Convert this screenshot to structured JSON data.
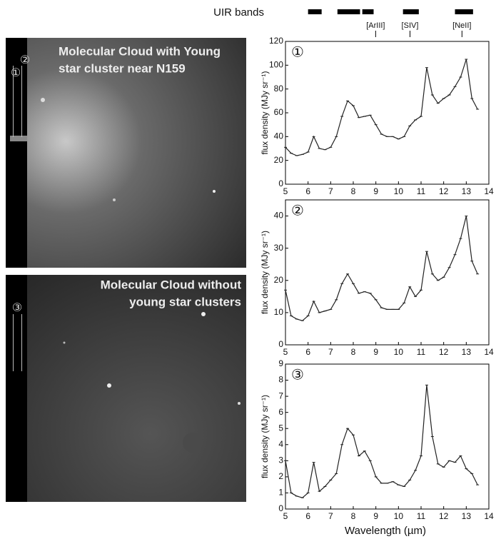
{
  "uir": {
    "label": "UIR bands",
    "bands": [
      [
        6.0,
        6.6
      ],
      [
        7.3,
        8.3
      ],
      [
        8.4,
        8.9
      ],
      [
        10.2,
        10.9
      ],
      [
        12.5,
        13.3
      ]
    ],
    "lines": [
      {
        "label": "[ArIII]",
        "x": 8.99
      },
      {
        "label": "[SIV]",
        "x": 10.51
      },
      {
        "label": "[NeII]",
        "x": 12.81
      }
    ]
  },
  "images": [
    {
      "caption_lines": [
        "Molecular Cloud with Young",
        "star cluster near N159"
      ],
      "markers": [
        "①",
        "②"
      ]
    },
    {
      "caption_lines": [
        "Molecular Cloud without",
        "young star clusters"
      ],
      "markers": [
        "③"
      ]
    }
  ],
  "x_label": "Wavelength (µm)",
  "chart_data": [
    {
      "type": "line",
      "panel_label": "①",
      "y_label": "flux density (MJy sr⁻¹)",
      "xlim": [
        5,
        14
      ],
      "xticks": [
        5,
        6,
        7,
        8,
        9,
        10,
        11,
        12,
        13,
        14
      ],
      "ylim": [
        0,
        120
      ],
      "yticks": [
        0,
        20,
        40,
        60,
        80,
        100,
        120
      ],
      "x": [
        5,
        5.25,
        5.5,
        5.75,
        6,
        6.25,
        6.5,
        6.75,
        7,
        7.25,
        7.5,
        7.75,
        8,
        8.25,
        8.5,
        8.75,
        9,
        9.25,
        9.5,
        9.75,
        10,
        10.25,
        10.5,
        10.75,
        11,
        11.25,
        11.5,
        11.75,
        12,
        12.25,
        12.5,
        12.75,
        13,
        13.25,
        13.5
      ],
      "series": [
        {
          "color": "#222222",
          "values": [
            31,
            26,
            24,
            25,
            27,
            40,
            30,
            29,
            31,
            40,
            57,
            70,
            66,
            56,
            57,
            58,
            50,
            42,
            40,
            40,
            38,
            40,
            49,
            54,
            57,
            98,
            75,
            68,
            72,
            75,
            82,
            90,
            105,
            72,
            63
          ]
        }
      ]
    },
    {
      "type": "line",
      "panel_label": "②",
      "y_label": "flux density (MJy sr⁻¹)",
      "xlim": [
        5,
        14
      ],
      "xticks": [
        5,
        6,
        7,
        8,
        9,
        10,
        11,
        12,
        13,
        14
      ],
      "ylim": [
        0,
        45
      ],
      "yticks": [
        0,
        10,
        20,
        30,
        40
      ],
      "x": [
        5,
        5.25,
        5.5,
        5.75,
        6,
        6.25,
        6.5,
        6.75,
        7,
        7.25,
        7.5,
        7.75,
        8,
        8.25,
        8.5,
        8.75,
        9,
        9.25,
        9.5,
        9.75,
        10,
        10.25,
        10.5,
        10.75,
        11,
        11.25,
        11.5,
        11.75,
        12,
        12.25,
        12.5,
        12.75,
        13,
        13.25,
        13.5
      ],
      "series": [
        {
          "color": "#222222",
          "values": [
            17,
            9,
            8,
            7.5,
            9,
            13.5,
            10,
            10.5,
            11,
            14,
            19,
            22,
            19,
            16,
            16.5,
            16,
            14,
            11.5,
            11,
            11,
            11,
            13,
            18,
            15,
            17,
            29,
            22,
            20,
            21,
            24,
            28,
            33,
            40,
            26,
            22
          ]
        }
      ]
    },
    {
      "type": "line",
      "panel_label": "③",
      "y_label": "flux density (MJy sr⁻¹)",
      "xlim": [
        5,
        14
      ],
      "xticks": [
        5,
        6,
        7,
        8,
        9,
        10,
        11,
        12,
        13,
        14
      ],
      "ylim": [
        0,
        9
      ],
      "yticks": [
        0,
        1,
        2,
        3,
        4,
        5,
        6,
        7,
        8,
        9
      ],
      "x": [
        5,
        5.25,
        5.5,
        5.75,
        6,
        6.25,
        6.5,
        6.75,
        7,
        7.25,
        7.5,
        7.75,
        8,
        8.25,
        8.5,
        8.75,
        9,
        9.25,
        9.5,
        9.75,
        10,
        10.25,
        10.5,
        10.75,
        11,
        11.25,
        11.5,
        11.75,
        12,
        12.25,
        12.5,
        12.75,
        13,
        13.25,
        13.5
      ],
      "series": [
        {
          "color": "#222222",
          "values": [
            3,
            1,
            0.8,
            0.7,
            1,
            2.9,
            1.1,
            1.4,
            1.8,
            2.2,
            4,
            5,
            4.6,
            3.3,
            3.6,
            3,
            2,
            1.6,
            1.6,
            1.7,
            1.5,
            1.4,
            1.8,
            2.4,
            3.3,
            7.7,
            4.5,
            2.8,
            2.6,
            3,
            2.9,
            3.3,
            2.5,
            2.2,
            1.5
          ]
        }
      ]
    }
  ]
}
